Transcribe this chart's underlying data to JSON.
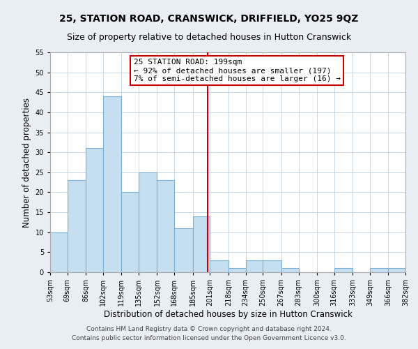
{
  "title": "25, STATION ROAD, CRANSWICK, DRIFFIELD, YO25 9QZ",
  "subtitle": "Size of property relative to detached houses in Hutton Cranswick",
  "xlabel": "Distribution of detached houses by size in Hutton Cranswick",
  "ylabel": "Number of detached properties",
  "bin_edges": [
    53,
    69,
    86,
    102,
    119,
    135,
    152,
    168,
    185,
    201,
    218,
    234,
    250,
    267,
    283,
    300,
    316,
    333,
    349,
    366,
    382
  ],
  "bar_heights": [
    10,
    23,
    31,
    44,
    20,
    25,
    23,
    11,
    14,
    3,
    1,
    3,
    3,
    1,
    0,
    0,
    1,
    0,
    1,
    1
  ],
  "bar_color": "#c5dff0",
  "bar_edge_color": "#7ab0d4",
  "property_line_x": 199,
  "annotation_title": "25 STATION ROAD: 199sqm",
  "annotation_line1": "← 92% of detached houses are smaller (197)",
  "annotation_line2": "7% of semi-detached houses are larger (16) →",
  "annotation_box_color": "#ffffff",
  "annotation_box_edge": "#cc0000",
  "property_line_color": "#cc0000",
  "ylim": [
    0,
    55
  ],
  "yticks": [
    0,
    5,
    10,
    15,
    20,
    25,
    30,
    35,
    40,
    45,
    50,
    55
  ],
  "tick_labels": [
    "53sqm",
    "69sqm",
    "86sqm",
    "102sqm",
    "119sqm",
    "135sqm",
    "152sqm",
    "168sqm",
    "185sqm",
    "201sqm",
    "218sqm",
    "234sqm",
    "250sqm",
    "267sqm",
    "283sqm",
    "300sqm",
    "316sqm",
    "333sqm",
    "349sqm",
    "366sqm",
    "382sqm"
  ],
  "footer_line1": "Contains HM Land Registry data © Crown copyright and database right 2024.",
  "footer_line2": "Contains public sector information licensed under the Open Government Licence v3.0.",
  "background_color": "#e8eef4",
  "plot_background_color": "#ffffff",
  "grid_color": "#c8d8e8",
  "title_fontsize": 10,
  "subtitle_fontsize": 9,
  "axis_label_fontsize": 8.5,
  "tick_fontsize": 7,
  "annotation_fontsize": 8,
  "footer_fontsize": 6.5
}
